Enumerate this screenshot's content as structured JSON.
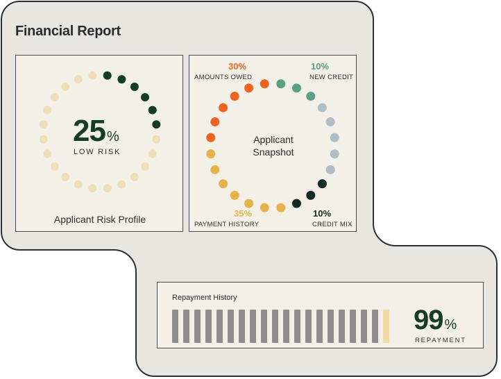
{
  "title": "Financial Report",
  "risk_profile": {
    "value": "25",
    "unit": "%",
    "level_label": "LOW RISK",
    "caption": "Applicant Risk Profile",
    "fill_fraction": 0.25,
    "dot_count": 24,
    "colors": {
      "filled": "#153d22",
      "empty": "#f0deb8"
    }
  },
  "snapshot": {
    "center_label_line1": "Applicant",
    "center_label_line2": "Snapshot",
    "segments": [
      {
        "pct": "10%",
        "label": "NEW CREDIT",
        "value": 10,
        "color": "#5c9e86",
        "dots": 3
      },
      {
        "pct": "",
        "label": "",
        "value": 15,
        "color": "#adbec6",
        "dots": 5
      },
      {
        "pct": "10%",
        "label": "CREDIT MIX",
        "value": 10,
        "color": "#142a1f",
        "dots": 3
      },
      {
        "pct": "35%",
        "label": "PAYMENT HISTORY",
        "value": 35,
        "color": "#e6b34a",
        "dots": 7
      },
      {
        "pct": "30%",
        "label": "AMOUNTS OWED",
        "value": 30,
        "color": "#ef6320",
        "dots": 6
      }
    ]
  },
  "repayment": {
    "title": "Repayment History",
    "value": "99",
    "unit": "%",
    "label": "REPAYMENT",
    "bar_count": 20,
    "colors": {
      "paid": "#8e8e8c",
      "latest": "#f0d9a4"
    }
  },
  "colors": {
    "panel_bg": "#e7e6e1",
    "panel_border": "#2c2f33",
    "card_bg": "#f3f0e8",
    "accent_dark_green": "#153d22",
    "orange": "#ef6320",
    "teal": "#5c9e86",
    "gold": "#e6b34a"
  }
}
